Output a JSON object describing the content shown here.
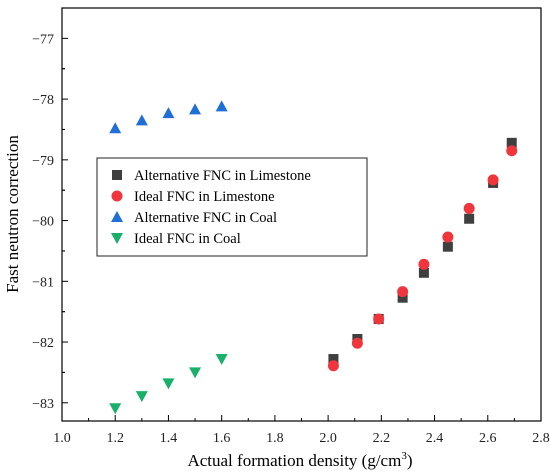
{
  "chart_data": {
    "type": "scatter",
    "xlabel": "Actual formation density (g/cm",
    "xlabel_sup": "3",
    "xlabel_end": ")",
    "ylabel": "Fast neutron correction",
    "xlim": [
      1.0,
      2.8
    ],
    "ylim": [
      -83.3,
      -76.5
    ],
    "x_ticks": [
      "1.0",
      "1.2",
      "1.4",
      "1.6",
      "1.8",
      "2.0",
      "2.2",
      "2.4",
      "2.6",
      "2.8"
    ],
    "y_ticks": [
      "−77",
      "−78",
      "−79",
      "−80",
      "−81",
      "−82",
      "−83"
    ],
    "legend_position": "center-left",
    "series": [
      {
        "name": "Alternative FNC in Limestone",
        "marker": "square",
        "color": "#3f3f3f",
        "x": [
          2.02,
          2.11,
          2.19,
          2.28,
          2.36,
          2.45,
          2.53,
          2.62,
          2.69
        ],
        "y": [
          -82.28,
          -81.95,
          -81.62,
          -81.27,
          -80.86,
          -80.43,
          -79.97,
          -79.38,
          -78.72
        ]
      },
      {
        "name": "Ideal FNC in Limestone",
        "marker": "circle",
        "color": "#f0363c",
        "x": [
          2.02,
          2.11,
          2.19,
          2.28,
          2.36,
          2.45,
          2.53,
          2.62,
          2.69
        ],
        "y": [
          -82.39,
          -82.02,
          -81.62,
          -81.17,
          -80.72,
          -80.27,
          -79.8,
          -79.33,
          -78.85
        ]
      },
      {
        "name": "Alternative FNC in Coal",
        "marker": "triangle-up",
        "color": "#1f6fd6",
        "x": [
          1.2,
          1.3,
          1.4,
          1.5,
          1.6
        ],
        "y": [
          -78.48,
          -78.35,
          -78.23,
          -78.17,
          -78.12
        ]
      },
      {
        "name": "Ideal FNC in Coal",
        "marker": "triangle-down",
        "color": "#19b06b",
        "x": [
          1.2,
          1.3,
          1.4,
          1.5,
          1.6
        ],
        "y": [
          -83.09,
          -82.89,
          -82.68,
          -82.5,
          -82.28
        ]
      }
    ]
  }
}
